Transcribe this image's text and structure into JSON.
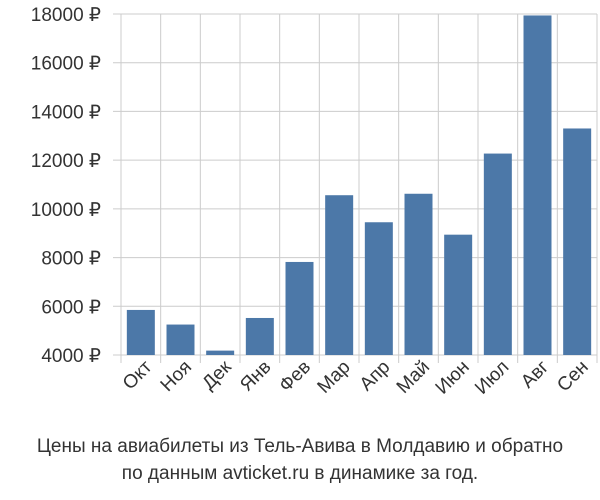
{
  "chart_data": {
    "type": "bar",
    "categories": [
      "Окт",
      "Ноя",
      "Дек",
      "Янв",
      "Фев",
      "Мар",
      "Апр",
      "Май",
      "Июн",
      "Июл",
      "Авг",
      "Сен"
    ],
    "values": [
      5850,
      5250,
      4180,
      5520,
      7820,
      10560,
      9450,
      10620,
      8940,
      12270,
      17940,
      13300
    ],
    "y_ticks": [
      {
        "value": 4000,
        "label": "4000 ₽"
      },
      {
        "value": 6000,
        "label": "6000 ₽"
      },
      {
        "value": 8000,
        "label": "8000 ₽"
      },
      {
        "value": 10000,
        "label": "10000 ₽"
      },
      {
        "value": 12000,
        "label": "12000 ₽"
      },
      {
        "value": 14000,
        "label": "14000 ₽"
      },
      {
        "value": 16000,
        "label": "16000 ₽"
      },
      {
        "value": 18000,
        "label": "18000 ₽"
      }
    ],
    "ylim": [
      4000,
      18000
    ],
    "grid": true,
    "bar_color": "#4c78a8",
    "grid_color": "#cccccc",
    "caption_line1": "Цены на авиабилеты из Тель-Авива в Молдавию и обратно",
    "caption_line2": "по данным avticket.ru в динамике за год."
  }
}
